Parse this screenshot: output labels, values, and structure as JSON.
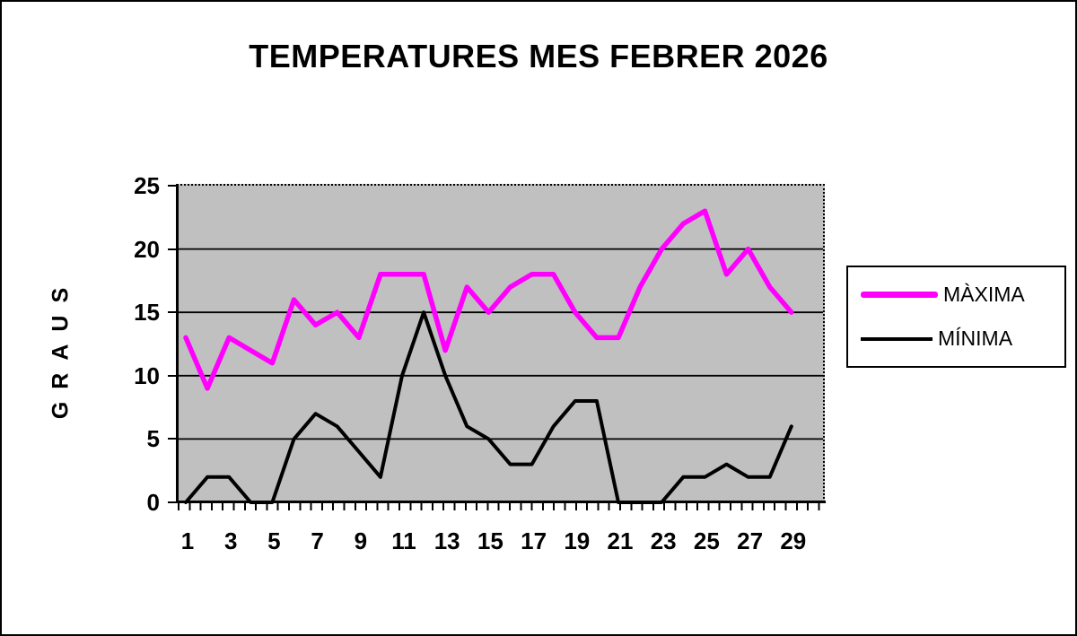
{
  "chart_data": {
    "type": "line",
    "title": "TEMPERATURES MES FEBRER 2026",
    "ylabel": "GRAUS",
    "xlabel": "",
    "days": [
      1,
      2,
      3,
      4,
      5,
      6,
      7,
      8,
      9,
      10,
      11,
      12,
      13,
      14,
      15,
      16,
      17,
      18,
      19,
      20,
      21,
      22,
      23,
      24,
      25,
      26,
      27,
      28,
      29
    ],
    "x_axis_labels": [
      "1",
      "3",
      "5",
      "7",
      "9",
      "11",
      "13",
      "15",
      "17",
      "19",
      "21",
      "23",
      "25",
      "27",
      "29"
    ],
    "y_ticks": [
      0,
      5,
      10,
      15,
      20,
      25
    ],
    "ylim": [
      0,
      25
    ],
    "grid": true,
    "plot_background": "#c0c0c0",
    "gridline_color": "#000000",
    "legend_position": "right",
    "series": [
      {
        "name": "MÀXIMA",
        "color": "#ff00ff",
        "values": [
          13,
          9,
          13,
          12,
          11,
          16,
          14,
          15,
          13,
          18,
          18,
          18,
          12,
          17,
          15,
          17,
          18,
          18,
          15,
          13,
          13,
          17,
          20,
          22,
          23,
          18,
          20,
          17,
          15
        ]
      },
      {
        "name": "MÍNIMA",
        "color": "#000000",
        "values": [
          0,
          2,
          2,
          0,
          0,
          5,
          7,
          6,
          4,
          2,
          10,
          15,
          10,
          6,
          5,
          3,
          3,
          6,
          8,
          8,
          0,
          0,
          0,
          2,
          2,
          3,
          2,
          2,
          6
        ]
      }
    ]
  }
}
